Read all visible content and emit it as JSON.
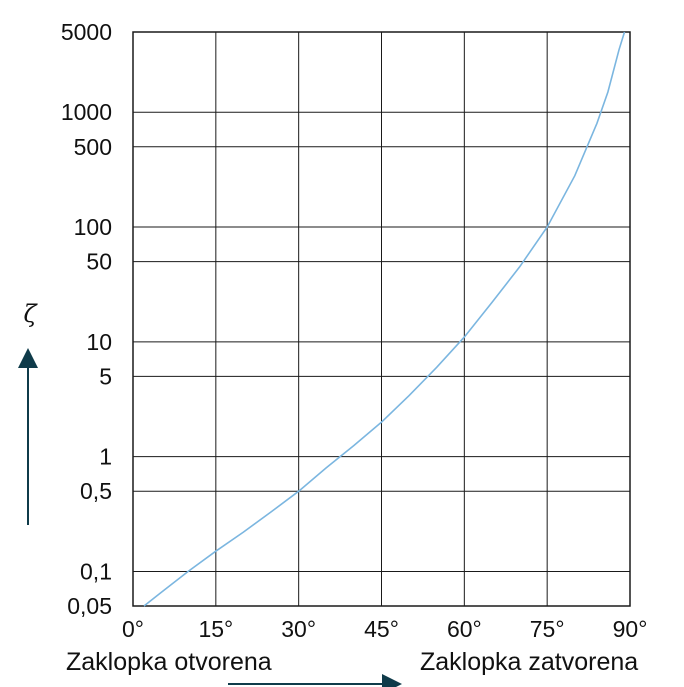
{
  "chart_data": {
    "type": "line",
    "y_scale": "log",
    "xlim": [
      0,
      90
    ],
    "ylim": [
      0.05,
      5000
    ],
    "x_ticks": [
      "0°",
      "15°",
      "30°",
      "45°",
      "60°",
      "75°",
      "90°"
    ],
    "x_tick_values": [
      0,
      15,
      30,
      45,
      60,
      75,
      90
    ],
    "y_ticks": [
      "5000",
      "1000",
      "500",
      "100",
      "50",
      "10",
      "5",
      "1",
      "0,5",
      "0,1",
      "0,05"
    ],
    "y_tick_values": [
      5000,
      1000,
      500,
      100,
      50,
      10,
      5,
      1,
      0.5,
      0.1,
      0.05
    ],
    "ylabel": "ζ",
    "xlabel_left": "Zaklopka otvorena",
    "xlabel_right": "Zaklopka zatvorena",
    "grid": true,
    "series": [
      {
        "color": "#7bb6e0",
        "x": [
          2,
          5,
          10,
          15,
          20,
          25,
          30,
          35,
          40,
          45,
          50,
          55,
          60,
          65,
          70,
          75,
          80,
          84,
          86,
          88,
          89
        ],
        "y": [
          0.05,
          0.065,
          0.1,
          0.15,
          0.22,
          0.33,
          0.5,
          0.8,
          1.25,
          2.0,
          3.4,
          6.0,
          11.0,
          22.0,
          45.0,
          100.0,
          280.0,
          800.0,
          1500.0,
          3500.0,
          5000.0
        ]
      }
    ]
  }
}
